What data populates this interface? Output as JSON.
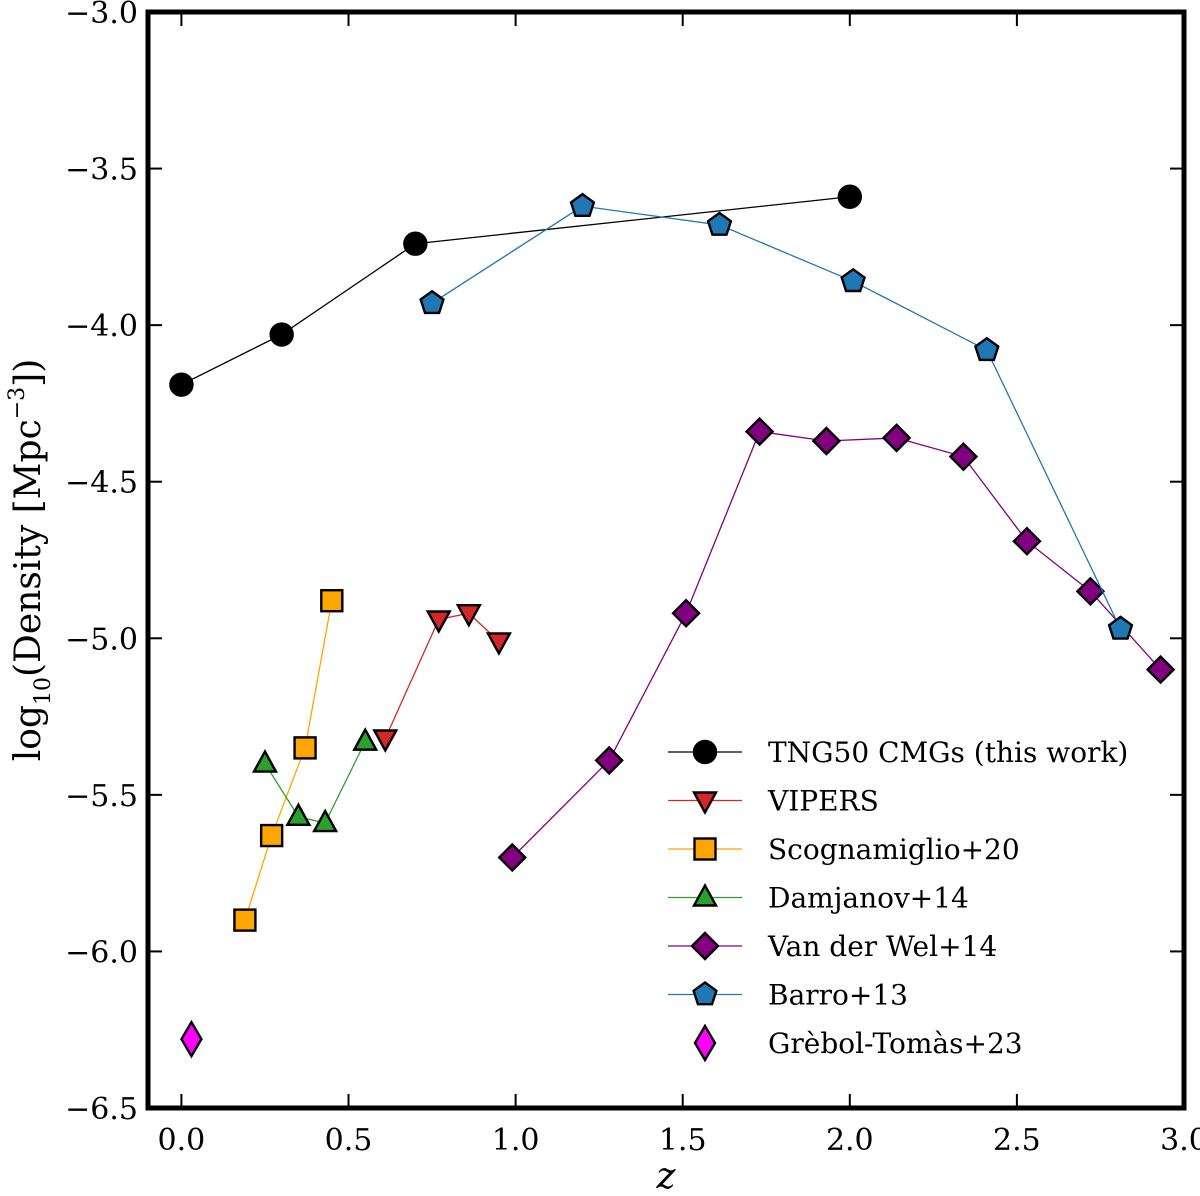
{
  "chart_data": {
    "type": "line",
    "title": "",
    "xlabel": "z",
    "ylabel_main": "log",
    "ylabel_sub": "10",
    "ylabel_open": "(Density [Mpc",
    "ylabel_sup": "−3",
    "ylabel_close": "])",
    "xlim": [
      -0.1,
      3.0
    ],
    "ylim": [
      -6.5,
      -3.0
    ],
    "xticks": [
      0.0,
      0.5,
      1.0,
      1.5,
      2.0,
      2.5,
      3.0
    ],
    "xtick_labels": [
      "0.0",
      "0.5",
      "1.0",
      "1.5",
      "2.0",
      "2.5",
      "3.0"
    ],
    "yticks": [
      -6.5,
      -6.0,
      -5.5,
      -5.0,
      -4.5,
      -4.0,
      -3.5,
      -3.0
    ],
    "ytick_labels": [
      "−6.5",
      "−6.0",
      "−5.5",
      "−5.0",
      "−4.5",
      "−4.0",
      "−3.5",
      "−3.0"
    ],
    "grid": false,
    "legend_position": "lower-right",
    "series": [
      {
        "name": "TNG50 CMGs (this work)",
        "marker": "circle",
        "color": "#000000",
        "line_color": "#000000",
        "x": [
          0.0,
          0.3,
          0.7,
          2.0
        ],
        "y": [
          -4.19,
          -4.03,
          -3.74,
          -3.59
        ]
      },
      {
        "name": "VIPERS",
        "marker": "triangle-down",
        "color": "#d62728",
        "line_color": "#d62728",
        "x": [
          0.61,
          0.77,
          0.86,
          0.95
        ],
        "y": [
          -5.32,
          -4.94,
          -4.92,
          -5.01
        ]
      },
      {
        "name": "Scognamiglio+20",
        "marker": "square",
        "color": "#ffa500",
        "line_color": "#ffa500",
        "x": [
          0.19,
          0.27,
          0.37,
          0.45
        ],
        "y": [
          -5.9,
          -5.63,
          -5.35,
          -4.88
        ]
      },
      {
        "name": "Damjanov+14",
        "marker": "triangle-up",
        "color": "#2ca02c",
        "line_color": "#2ca02c",
        "x": [
          0.25,
          0.35,
          0.43,
          0.55
        ],
        "y": [
          -5.4,
          -5.57,
          -5.59,
          -5.33
        ]
      },
      {
        "name": "Van der Wel+14",
        "marker": "diamond",
        "color": "#800080",
        "line_color": "#800080",
        "x": [
          0.99,
          1.28,
          1.51,
          1.73,
          1.93,
          2.14,
          2.34,
          2.53,
          2.72,
          2.93
        ],
        "y": [
          -5.7,
          -5.39,
          -4.92,
          -4.34,
          -4.37,
          -4.36,
          -4.42,
          -4.69,
          -4.85,
          -5.1
        ]
      },
      {
        "name": "Barro+13",
        "marker": "pentagon",
        "color": "#1f77b4",
        "line_color": "#1f77b4",
        "x": [
          0.75,
          1.2,
          1.61,
          2.01,
          2.41,
          2.81
        ],
        "y": [
          -3.93,
          -3.62,
          -3.68,
          -3.86,
          -4.08,
          -4.97
        ]
      },
      {
        "name": "Grèbol-Tomàs+23",
        "marker": "thin-diamond",
        "color": "#ff00ff",
        "line_color": null,
        "x": [
          0.03
        ],
        "y": [
          -6.28
        ]
      }
    ]
  }
}
